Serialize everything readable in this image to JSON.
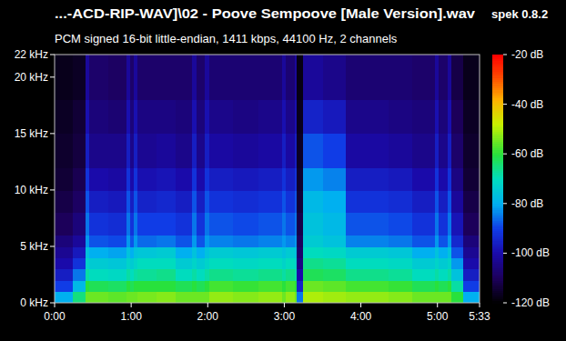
{
  "chart_data": {
    "type": "heatmap",
    "title": "...-ACD-RIP-WAV]\\02 - Poove Sempoove [Male Version].wav",
    "subtitle": "PCM signed 16-bit little-endian, 1411 kbps, 44100 Hz, 2 channels",
    "annotations": [
      "spek 0.8.2"
    ],
    "x": [
      0,
      14,
      24,
      27,
      42,
      56,
      59,
      62,
      65,
      80,
      95,
      108,
      111,
      118,
      121,
      140,
      160,
      178,
      181,
      188,
      190,
      195,
      210,
      228,
      245,
      262,
      280,
      298,
      301,
      308,
      311,
      320
    ],
    "y": [
      0,
      1,
      2,
      3,
      4,
      5,
      6,
      8,
      10,
      12,
      15,
      18
    ],
    "values": [
      [
        -80,
        -65,
        -55,
        -55,
        -56,
        -55,
        -55,
        -55,
        -54,
        -53,
        -55,
        -55,
        -55,
        -55,
        -52,
        -53,
        -52,
        -55,
        -52,
        -55,
        -85,
        -50,
        -51,
        -52,
        -52,
        -53,
        -55,
        -55,
        -55,
        -55,
        -60,
        -80
      ],
      [
        -90,
        -78,
        -60,
        -62,
        -63,
        -60,
        -62,
        -60,
        -60,
        -60,
        -62,
        -60,
        -62,
        -60,
        -58,
        -59,
        -58,
        -60,
        -58,
        -60,
        -95,
        -55,
        -56,
        -58,
        -58,
        -59,
        -62,
        -60,
        -62,
        -60,
        -68,
        -90
      ],
      [
        -96,
        -85,
        -68,
        -70,
        -71,
        -68,
        -70,
        -68,
        -67,
        -66,
        -70,
        -68,
        -70,
        -68,
        -66,
        -67,
        -66,
        -68,
        -66,
        -68,
        -100,
        -62,
        -63,
        -66,
        -66,
        -67,
        -70,
        -68,
        -70,
        -68,
        -76,
        -96
      ],
      [
        -100,
        -92,
        -72,
        -74,
        -75,
        -72,
        -74,
        -72,
        -70,
        -70,
        -74,
        -72,
        -74,
        -72,
        -70,
        -71,
        -70,
        -72,
        -70,
        -72,
        -105,
        -66,
        -67,
        -70,
        -70,
        -71,
        -74,
        -72,
        -74,
        -72,
        -82,
        -100
      ],
      [
        -103,
        -97,
        -76,
        -80,
        -81,
        -76,
        -80,
        -76,
        -75,
        -74,
        -80,
        -76,
        -80,
        -76,
        -74,
        -75,
        -74,
        -76,
        -74,
        -76,
        -108,
        -70,
        -71,
        -74,
        -74,
        -75,
        -80,
        -76,
        -80,
        -76,
        -88,
        -103
      ],
      [
        -106,
        -102,
        -82,
        -88,
        -89,
        -82,
        -88,
        -82,
        -86,
        -85,
        -88,
        -82,
        -88,
        -82,
        -84,
        -85,
        -84,
        -82,
        -84,
        -82,
        -110,
        -74,
        -76,
        -84,
        -84,
        -85,
        -88,
        -82,
        -88,
        -82,
        -94,
        -106
      ],
      [
        -110,
        -106,
        -85,
        -92,
        -93,
        -85,
        -92,
        -85,
        -90,
        -90,
        -92,
        -85,
        -92,
        -85,
        -88,
        -89,
        -88,
        -85,
        -88,
        -85,
        -112,
        -76,
        -78,
        -88,
        -88,
        -89,
        -92,
        -85,
        -92,
        -85,
        -98,
        -110
      ],
      [
        -112,
        -109,
        -88,
        -96,
        -97,
        -88,
        -96,
        -88,
        -95,
        -94,
        -96,
        -88,
        -96,
        -88,
        -92,
        -93,
        -92,
        -88,
        -92,
        -88,
        -114,
        -78,
        -80,
        -92,
        -92,
        -93,
        -96,
        -88,
        -96,
        -88,
        -102,
        -112
      ],
      [
        -114,
        -111,
        -92,
        -100,
        -101,
        -92,
        -100,
        -92,
        -99,
        -98,
        -100,
        -92,
        -100,
        -92,
        -96,
        -97,
        -96,
        -92,
        -96,
        -92,
        -115,
        -82,
        -84,
        -96,
        -96,
        -97,
        -100,
        -92,
        -100,
        -92,
        -105,
        -114
      ],
      [
        -115,
        -113,
        -96,
        -104,
        -104,
        -96,
        -104,
        -96,
        -103,
        -102,
        -104,
        -96,
        -104,
        -96,
        -101,
        -102,
        -101,
        -96,
        -101,
        -96,
        -116,
        -88,
        -90,
        -101,
        -101,
        -102,
        -104,
        -96,
        -104,
        -96,
        -108,
        -115
      ],
      [
        -116,
        -114,
        -99,
        -106,
        -107,
        -99,
        -106,
        -99,
        -105,
        -105,
        -106,
        -99,
        -106,
        -99,
        -104,
        -105,
        -104,
        -99,
        -104,
        -99,
        -117,
        -95,
        -97,
        -104,
        -104,
        -105,
        -106,
        -99,
        -106,
        -99,
        -110,
        -116
      ],
      [
        -117,
        -116,
        -102,
        -108,
        -109,
        -102,
        -108,
        -102,
        -108,
        -108,
        -108,
        -102,
        -108,
        -102,
        -107,
        -107,
        -107,
        -102,
        -107,
        -102,
        -118,
        -102,
        -104,
        -107,
        -107,
        -107,
        -108,
        -102,
        -108,
        -102,
        -112,
        -117
      ]
    ],
    "xlim": [
      0,
      333
    ],
    "xticks": [
      {
        "value": 0,
        "label": "0:00"
      },
      {
        "value": 60,
        "label": "1:00"
      },
      {
        "value": 120,
        "label": "2:00"
      },
      {
        "value": 180,
        "label": "3:00"
      },
      {
        "value": 240,
        "label": "4:00"
      },
      {
        "value": 300,
        "label": "5:00"
      },
      {
        "value": 333,
        "label": "5:33"
      }
    ],
    "ylim": [
      0,
      22
    ],
    "yticks": [
      {
        "value": 0,
        "label": "0 kHz"
      },
      {
        "value": 5,
        "label": "5 kHz"
      },
      {
        "value": 10,
        "label": "10 kHz"
      },
      {
        "value": 15,
        "label": "15 kHz"
      },
      {
        "value": 20,
        "label": "20 kHz"
      },
      {
        "value": 22,
        "label": "22 kHz"
      }
    ],
    "grid": false,
    "colorbar": {
      "lim": [
        -120,
        -20
      ],
      "ticks": [
        {
          "value": -20,
          "label": "-20 dB"
        },
        {
          "value": -40,
          "label": "-40 dB"
        },
        {
          "value": -60,
          "label": "-60 dB"
        },
        {
          "value": -80,
          "label": "-80 dB"
        },
        {
          "value": -100,
          "label": "-100 dB"
        },
        {
          "value": -120,
          "label": "-120 dB"
        }
      ]
    }
  }
}
